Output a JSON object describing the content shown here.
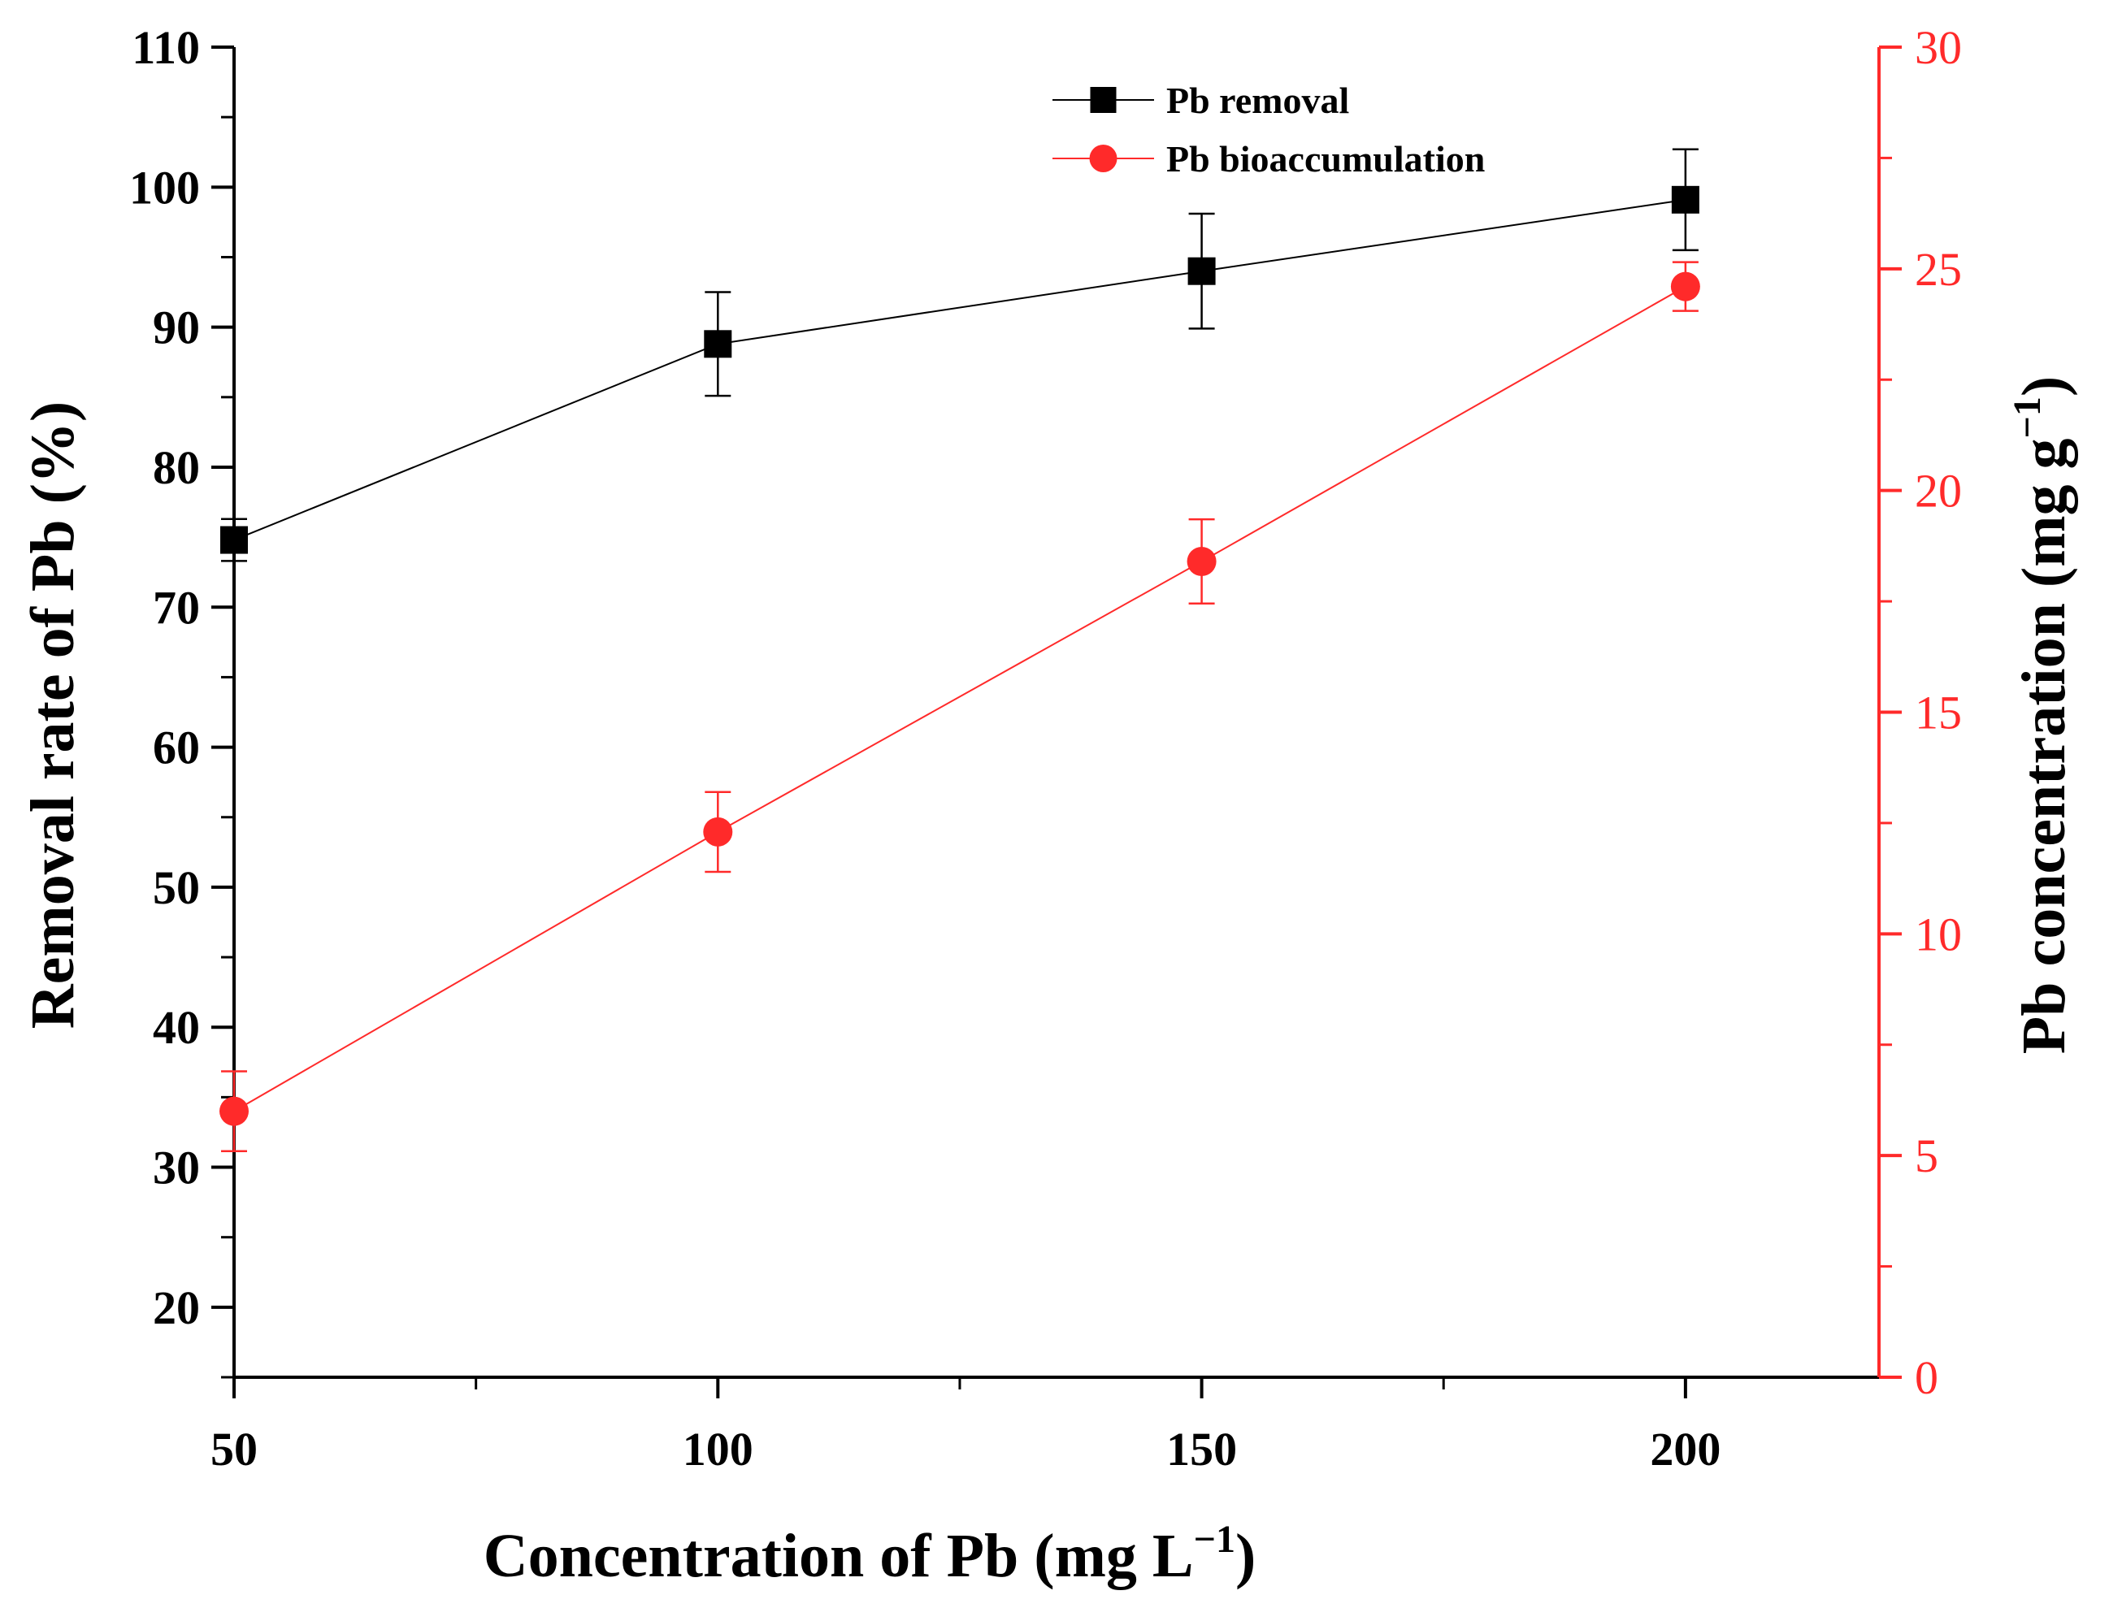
{
  "chart_data": {
    "type": "line",
    "x": [
      50,
      100,
      150,
      200
    ],
    "xlim": [
      50,
      220
    ],
    "x_ticks": [
      50,
      100,
      150,
      200
    ],
    "x_tick_labels": [
      "50",
      "100",
      "150",
      "200"
    ],
    "xlabel_main": "Concentration of Pb (mg L",
    "xlabel_sup": "−1",
    "xlabel_close": ")",
    "y_left": {
      "label": "Removal rate of Pb (%)",
      "lim": [
        15,
        110
      ],
      "ticks": [
        20,
        30,
        40,
        50,
        60,
        70,
        80,
        90,
        100,
        110
      ],
      "tick_labels": [
        "20",
        "30",
        "40",
        "50",
        "60",
        "70",
        "80",
        "90",
        "100",
        "110"
      ],
      "color": "#000000"
    },
    "y_right": {
      "label_main": "Pb concentration (mg g",
      "label_sup": "−1",
      "label_close": ")",
      "lim": [
        0,
        30
      ],
      "ticks": [
        0,
        5,
        10,
        15,
        20,
        25,
        30
      ],
      "tick_labels": [
        "0",
        "5",
        "10",
        "15",
        "20",
        "25",
        "30"
      ],
      "color": "#ff2a2a"
    },
    "series": [
      {
        "name": "Pb removal",
        "axis": "left",
        "marker": "square",
        "color": "#000000",
        "values": [
          74.8,
          88.8,
          94.0,
          99.1
        ],
        "errors": [
          1.5,
          3.7,
          4.1,
          3.6
        ]
      },
      {
        "name": "Pb bioaccumulation",
        "axis": "right",
        "marker": "circle",
        "color": "#ff2a2a",
        "values": [
          6.0,
          12.3,
          18.4,
          24.6
        ],
        "errors": [
          0.9,
          0.9,
          0.95,
          0.55
        ]
      }
    ],
    "legend_position": "top-center"
  }
}
